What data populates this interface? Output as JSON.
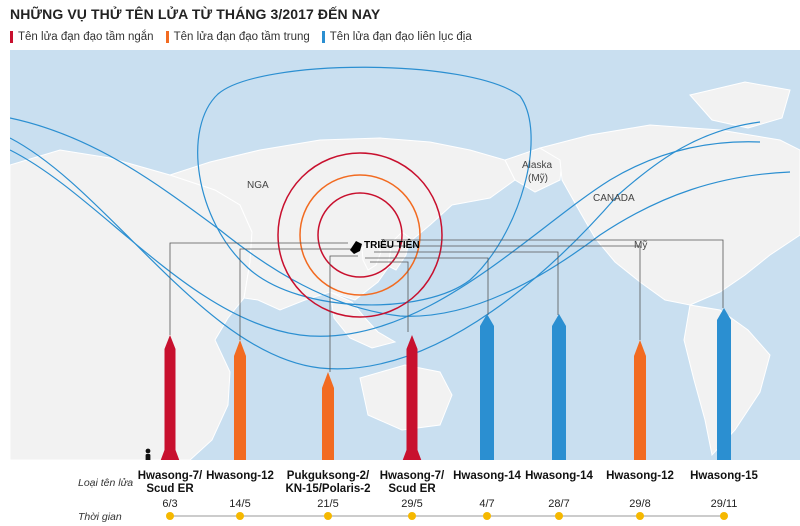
{
  "title": "NHỮNG VỤ THỬ TÊN LỬA TỪ THÁNG 3/2017 ĐẾN NAY",
  "legend": [
    {
      "label": "Tên lửa đạn đạo tầm ngắn",
      "color": "#c8102e"
    },
    {
      "label": "Tên lửa đạn đạo tầm trung",
      "color": "#f26b21"
    },
    {
      "label": "Tên lửa đạn đạo liên lục địa",
      "color": "#2b8fd1"
    }
  ],
  "map_labels": {
    "russia": "NGA",
    "alaska_line1": "Alaska",
    "alaska_line2": "(Mỹ)",
    "canada": "CANADA",
    "usa": "Mỹ",
    "north_korea": "TRIỀU TIÊN"
  },
  "row_labels": {
    "type": "Loại tên lửa",
    "time": "Thời gian"
  },
  "colors": {
    "short": "#c8102e",
    "medium": "#f26b21",
    "icbm": "#2b8fd1",
    "timeline_dot": "#f5b800"
  },
  "launches": [
    {
      "name_line1": "Hwasong-7/",
      "name_line2": "Scud ER",
      "date": "6/3",
      "category": "short"
    },
    {
      "name_line1": "Hwasong-12",
      "name_line2": "",
      "date": "14/5",
      "category": "medium"
    },
    {
      "name_line1": "Pukguksong-2/",
      "name_line2": "KN-15/Polaris-2",
      "date": "21/5",
      "category": "medium"
    },
    {
      "name_line1": "Hwasong-7/",
      "name_line2": "Scud ER",
      "date": "29/5",
      "category": "short"
    },
    {
      "name_line1": "Hwasong-14",
      "name_line2": "",
      "date": "4/7",
      "category": "icbm"
    },
    {
      "name_line1": "Hwasong-14",
      "name_line2": "",
      "date": "28/7",
      "category": "icbm"
    },
    {
      "name_line1": "Hwasong-12",
      "name_line2": "",
      "date": "29/8",
      "category": "medium"
    },
    {
      "name_line1": "Hwasong-15",
      "name_line2": "",
      "date": "29/11",
      "category": "icbm"
    }
  ]
}
